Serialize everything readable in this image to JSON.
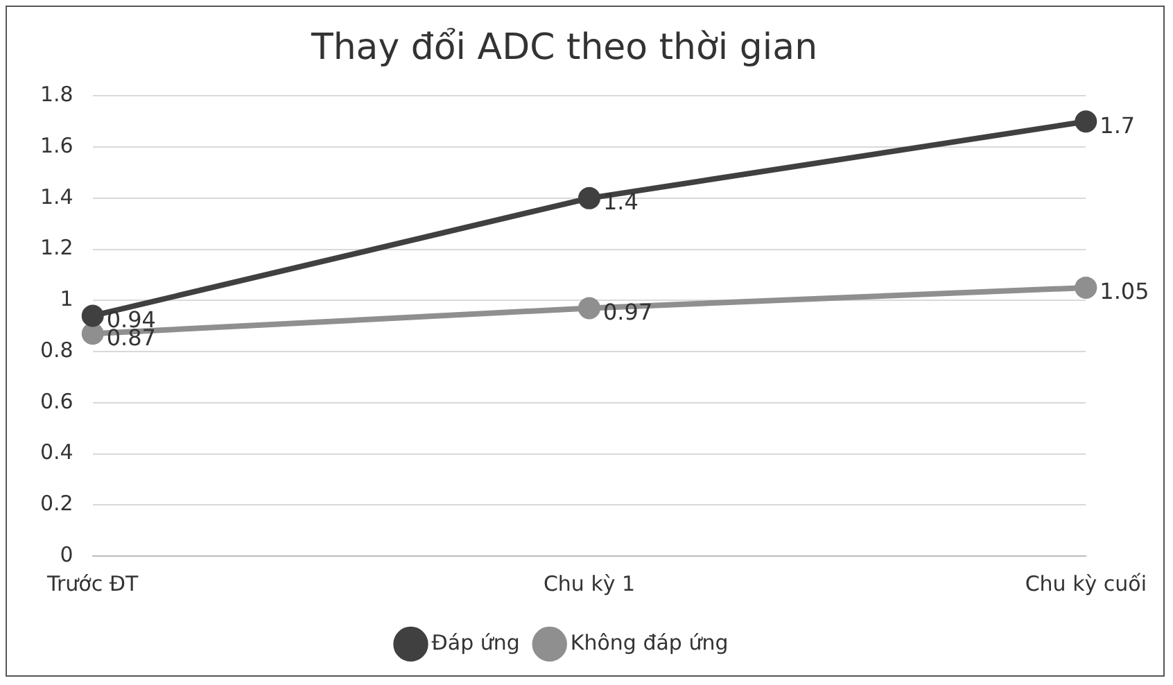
{
  "chart_data": {
    "type": "line",
    "title": "Thay đổi ADC theo thời gian",
    "categories": [
      "Trước ĐT",
      "Chu kỳ 1",
      "Chu kỳ cuối"
    ],
    "series": [
      {
        "name": "Đáp ứng",
        "color": "#404040",
        "values": [
          0.94,
          1.4,
          1.7
        ]
      },
      {
        "name": "Không đáp ứng",
        "color": "#8f8f8f",
        "values": [
          0.87,
          0.97,
          1.05
        ]
      }
    ],
    "ylim": [
      0,
      1.8
    ],
    "yticks": [
      0,
      0.2,
      0.4,
      0.6,
      0.8,
      1,
      1.2,
      1.4,
      1.6,
      1.8
    ],
    "grid": "y",
    "legend": "bottom",
    "marker": "circle",
    "line_style": "solid",
    "data_labels": true
  }
}
